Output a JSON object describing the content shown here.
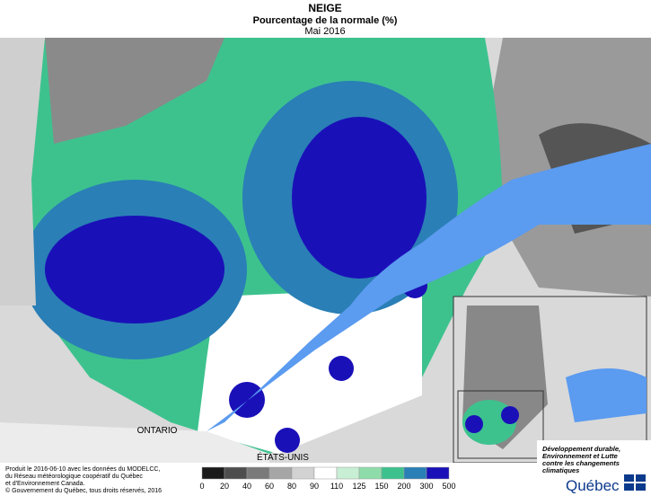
{
  "header": {
    "title": "NEIGE",
    "subtitle": "Pourcentage de la normale (%)",
    "period": "Mai 2016"
  },
  "map_labels": [
    "ONTARIO",
    "ÉTATS-UNIS"
  ],
  "legend": {
    "ticks": [
      0,
      20,
      40,
      60,
      80,
      90,
      110,
      125,
      150,
      200,
      300,
      500
    ],
    "colors": [
      "#1a1a1a",
      "#4d4d4d",
      "#7a7a7a",
      "#a6a6a6",
      "#d2d2d2",
      "#ffffff",
      "#c8eed4",
      "#8fdcab",
      "#3dc28e",
      "#2a7fb6",
      "#1a10b8"
    ]
  },
  "credits": [
    "Produit le 2016-06-10 avec les données du MODELCC,",
    "du Réseau météorologique coopératif du Québec",
    "et d'Environnement Canada.",
    "© Gouvernement du Québec, tous droits réservés, 2016"
  ],
  "logo": {
    "ministry": [
      "Développement durable,",
      "Environnement et Lutte",
      "contre les changements",
      "climatiques"
    ],
    "name": "Québec"
  }
}
